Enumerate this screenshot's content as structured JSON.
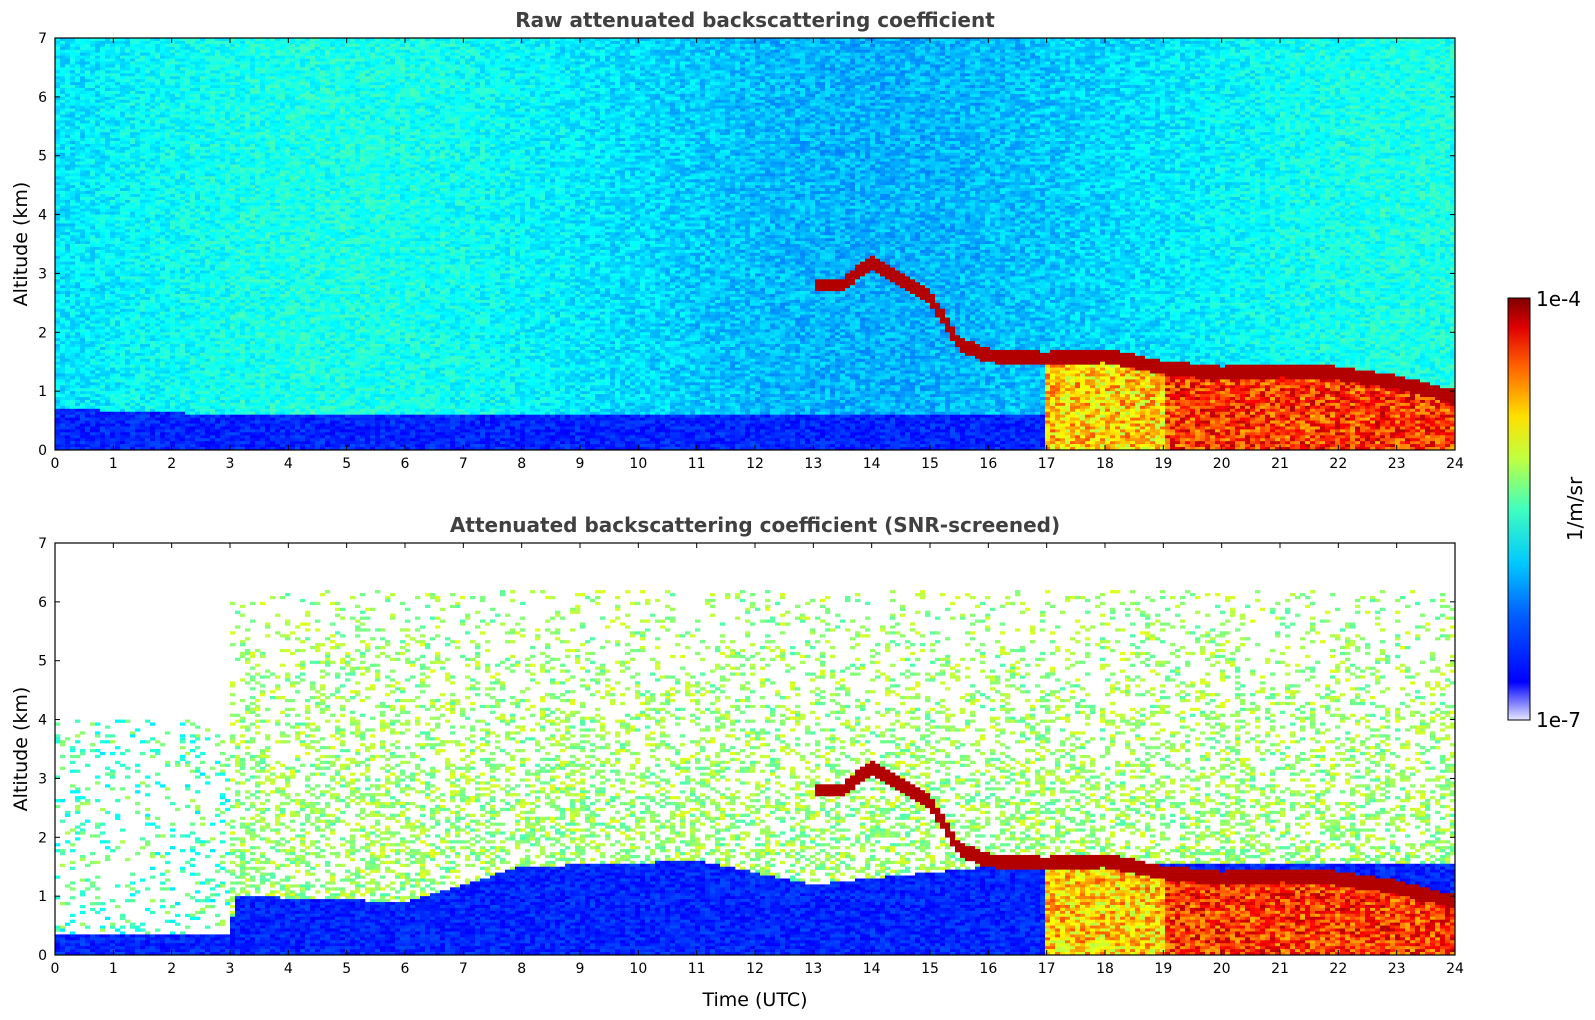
{
  "chart_data": [
    {
      "type": "heatmap",
      "title": "Raw attenuated backscattering coefficient",
      "xlabel": "",
      "ylabel": "Altitude (km)",
      "xlim": [
        0,
        24
      ],
      "ylim": [
        0,
        7
      ],
      "xticks": [
        "0",
        "1",
        "2",
        "3",
        "4",
        "5",
        "6",
        "7",
        "8",
        "9",
        "10",
        "11",
        "12",
        "13",
        "14",
        "15",
        "16",
        "17",
        "18",
        "19",
        "20",
        "21",
        "22",
        "23",
        "24"
      ],
      "yticks": [
        "0",
        "1",
        "2",
        "3",
        "4",
        "5",
        "6",
        "7"
      ],
      "colorscale": "jet",
      "colorbar": {
        "min_label": "1e-7",
        "max_label": "1e-4",
        "label": "1/m/sr",
        "scale": "log"
      },
      "features": {
        "boundary_layer_top_km": [
          [
            0,
            0.7
          ],
          [
            3,
            0.6
          ],
          [
            6,
            0.6
          ],
          [
            9,
            0.6
          ],
          [
            12,
            0.6
          ],
          [
            16,
            0.6
          ]
        ],
        "aerosol_layer": [
          [
            13,
            2.8
          ],
          [
            13.5,
            2.8
          ],
          [
            14,
            3.2
          ],
          [
            14.5,
            2.9
          ],
          [
            15,
            2.6
          ],
          [
            15.5,
            1.8
          ],
          [
            16,
            1.6
          ],
          [
            17,
            1.55
          ],
          [
            18,
            1.6
          ],
          [
            19,
            1.4
          ],
          [
            20,
            1.3
          ],
          [
            21,
            1.35
          ],
          [
            22,
            1.3
          ],
          [
            23,
            1.15
          ],
          [
            24,
            0.9
          ]
        ],
        "strong_signal_period_utc": [
          17,
          24
        ],
        "clear_air_signal_km": [
          0,
          7
        ]
      }
    },
    {
      "type": "heatmap",
      "title": "Attenuated backscattering coefficient (SNR-screened)",
      "xlabel": "Time (UTC)",
      "ylabel": "Altitude (km)",
      "xlim": [
        0,
        24
      ],
      "ylim": [
        0,
        7
      ],
      "xticks": [
        "0",
        "1",
        "2",
        "3",
        "4",
        "5",
        "6",
        "7",
        "8",
        "9",
        "10",
        "11",
        "12",
        "13",
        "14",
        "15",
        "16",
        "17",
        "18",
        "19",
        "20",
        "21",
        "22",
        "23",
        "24"
      ],
      "yticks": [
        "0",
        "1",
        "2",
        "3",
        "4",
        "5",
        "6",
        "7"
      ],
      "colorscale": "jet",
      "colorbar": {
        "min_label": "1e-7",
        "max_label": "1e-4",
        "label": "1/m/sr",
        "scale": "log"
      },
      "features": {
        "boundary_layer_top_km": [
          [
            0,
            0.35
          ],
          [
            3,
            0.35
          ],
          [
            3.1,
            1.0
          ],
          [
            6,
            0.9
          ],
          [
            8,
            1.5
          ],
          [
            11,
            1.6
          ],
          [
            13,
            1.2
          ],
          [
            16,
            1.5
          ],
          [
            17,
            1.55
          ]
        ],
        "aerosol_layer": [
          [
            13,
            2.8
          ],
          [
            13.5,
            2.8
          ],
          [
            14,
            3.2
          ],
          [
            14.5,
            2.9
          ],
          [
            15,
            2.6
          ],
          [
            15.5,
            1.8
          ],
          [
            16,
            1.6
          ],
          [
            17,
            1.55
          ],
          [
            18,
            1.6
          ],
          [
            19,
            1.4
          ],
          [
            20,
            1.3
          ],
          [
            21,
            1.35
          ],
          [
            22,
            1.3
          ],
          [
            23,
            1.15
          ],
          [
            24,
            0.9
          ]
        ],
        "strong_signal_period_utc": [
          17,
          24
        ],
        "screened_top_km": 6.2
      }
    }
  ],
  "colors": {
    "jet": [
      "#00007f",
      "#0000ff",
      "#007fff",
      "#00ffff",
      "#7fff7f",
      "#ffff00",
      "#ff7f00",
      "#ff0000",
      "#7f0000"
    ],
    "title": "#404040"
  }
}
